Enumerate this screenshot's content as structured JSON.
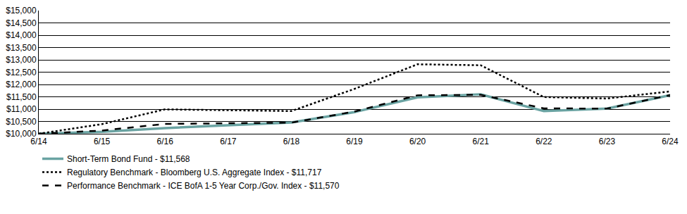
{
  "chart_data": {
    "type": "line",
    "categories": [
      "6/14",
      "6/15",
      "6/16",
      "6/17",
      "6/18",
      "6/19",
      "6/20",
      "6/21",
      "6/22",
      "6/23",
      "6/24"
    ],
    "series": [
      {
        "name": "Short-Term Bond Fund - $11,568",
        "color": "#6aa3a2",
        "line_style": "solid",
        "values": [
          10000,
          10080,
          10230,
          10340,
          10460,
          10880,
          11480,
          11600,
          10920,
          11020,
          11568
        ]
      },
      {
        "name": "Regulatory Benchmark - Bloomberg U.S. Aggregate Index - $11,717",
        "color": "#000000",
        "line_style": "dot",
        "values": [
          10000,
          10390,
          10990,
          10950,
          10920,
          11820,
          12820,
          12780,
          11490,
          11430,
          11717
        ]
      },
      {
        "name": "Performance Benchmark - ICE BofA 1-5 Year Corp./Gov. Index - $11,570",
        "color": "#000000",
        "line_style": "dash",
        "values": [
          10000,
          10130,
          10400,
          10430,
          10450,
          10900,
          11560,
          11580,
          11030,
          11020,
          11570
        ]
      }
    ],
    "ylim": [
      10000,
      15000
    ],
    "yticks": [
      {
        "value": 10000,
        "label": "$10,000"
      },
      {
        "value": 10500,
        "label": "$10,500"
      },
      {
        "value": 11000,
        "label": "$11,000"
      },
      {
        "value": 11500,
        "label": "$11,500"
      },
      {
        "value": 12000,
        "label": "$12,000"
      },
      {
        "value": 12500,
        "label": "$12,500"
      },
      {
        "value": 13000,
        "label": "$13,000"
      },
      {
        "value": 13500,
        "label": "$13,500"
      },
      {
        "value": 14000,
        "label": "$14,000"
      },
      {
        "value": 14500,
        "label": "$14,500"
      },
      {
        "value": 15000,
        "label": "$15,000"
      }
    ],
    "grid": true,
    "legend": "bottom",
    "marker": "none"
  }
}
